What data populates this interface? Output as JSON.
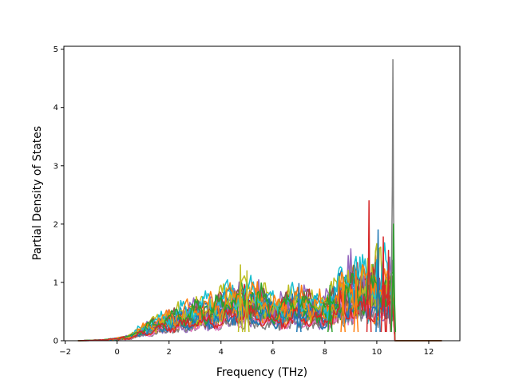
{
  "chart_data": {
    "type": "line",
    "title": "",
    "xlabel": "Frequency (THz)",
    "ylabel": "Partial Density of States",
    "xlim": [
      -2.05,
      13.2
    ],
    "ylim": [
      0,
      5.05
    ],
    "xticks": [
      -2,
      0,
      2,
      4,
      6,
      8,
      10,
      12
    ],
    "yticks": [
      0,
      1,
      2,
      3,
      4,
      5
    ],
    "grid": false,
    "legend": "none",
    "series_count": 24,
    "colors": [
      "#1f77b4",
      "#ff7f0e",
      "#2ca02c",
      "#d62728",
      "#9467bd",
      "#8c564b",
      "#e377c2",
      "#7f7f7f",
      "#bcbd22",
      "#17becf"
    ],
    "envelope": {
      "x": [
        -1.5,
        -0.5,
        0,
        0.5,
        1,
        2,
        3,
        4,
        5,
        6,
        7,
        8,
        8.5,
        9,
        9.5,
        10,
        10.4,
        10.55,
        10.65,
        10.7,
        12.5
      ],
      "y": [
        0,
        0.02,
        0.05,
        0.1,
        0.3,
        0.55,
        0.7,
        0.85,
        1.3,
        0.75,
        0.95,
        0.8,
        1.1,
        1.2,
        2.4,
        1.9,
        1.8,
        4.8,
        2.1,
        0,
        0
      ]
    },
    "peaks": [
      {
        "x": 9.7,
        "y": 2.4,
        "color": "#d62728"
      },
      {
        "x": 10.05,
        "y": 1.9,
        "color": "#1f77b4"
      },
      {
        "x": 10.25,
        "y": 1.78,
        "color": "#d62728"
      },
      {
        "x": 10.45,
        "y": 1.55,
        "color": "#d62728"
      },
      {
        "x": 10.62,
        "y": 4.82,
        "color": "#7f7f7f"
      },
      {
        "x": 10.64,
        "y": 2.0,
        "color": "#2ca02c"
      },
      {
        "x": 9.2,
        "y": 1.2,
        "color": "#ff7f0e"
      },
      {
        "x": 4.75,
        "y": 1.3,
        "color": "#bcbd22"
      },
      {
        "x": 5.0,
        "y": 1.2,
        "color": "#bcbd22"
      },
      {
        "x": 8.7,
        "y": 1.1,
        "color": "#ff7f0e"
      },
      {
        "x": 7.0,
        "y": 0.98,
        "color": "#1f77b4"
      },
      {
        "x": 8.2,
        "y": 0.95,
        "color": "#2ca02c"
      }
    ]
  }
}
